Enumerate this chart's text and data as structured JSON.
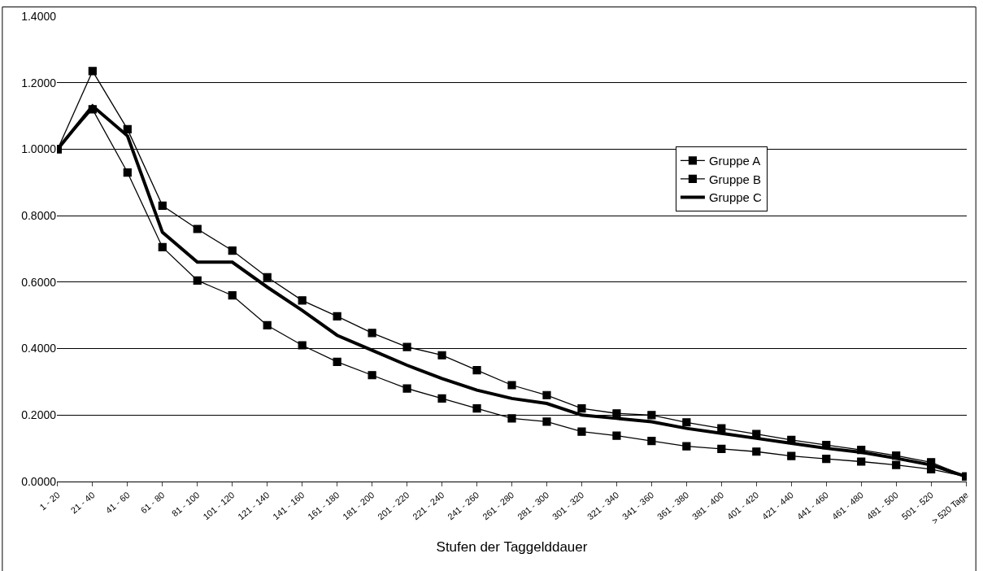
{
  "chart_data": {
    "type": "line",
    "xlabel": "Stufen der Taggelddauer",
    "categories": [
      "1 - 20",
      "21 - 40",
      "41 - 60",
      "61 - 80",
      "81 - 100",
      "101 - 120",
      "121 - 140",
      "141 - 160",
      "161 - 180",
      "181 - 200",
      "201 - 220",
      "221 - 240",
      "241 - 260",
      "261 - 280",
      "281 - 300",
      "301 - 320",
      "321 - 340",
      "341 - 360",
      "361 - 380",
      "381 - 400",
      "401 - 420",
      "421 - 440",
      "441 - 460",
      "461 - 480",
      "481 - 500",
      "501 - 520",
      "> 520 Tage"
    ],
    "series": [
      {
        "name": "Gruppe A",
        "color": "#000000",
        "marker": "square",
        "values": [
          1.0,
          1.235,
          1.06,
          0.83,
          0.76,
          0.695,
          0.615,
          0.545,
          0.497,
          0.447,
          0.405,
          0.38,
          0.335,
          0.29,
          0.26,
          0.22,
          0.205,
          0.2,
          0.178,
          0.16,
          0.143,
          0.125,
          0.11,
          0.095,
          0.078,
          0.058,
          0.015
        ]
      },
      {
        "name": "Gruppe B",
        "color": "#000000",
        "marker": "square",
        "values": [
          1.0,
          1.12,
          0.93,
          0.705,
          0.605,
          0.56,
          0.47,
          0.41,
          0.36,
          0.32,
          0.28,
          0.25,
          0.22,
          0.19,
          0.18,
          0.15,
          0.138,
          0.122,
          0.106,
          0.098,
          0.09,
          0.077,
          0.068,
          0.06,
          0.05,
          0.037,
          0.015
        ]
      },
      {
        "name": "Gruppe C",
        "color": "#000000",
        "marker": "none",
        "values": [
          1.0,
          1.13,
          1.04,
          0.75,
          0.66,
          0.66,
          0.585,
          0.515,
          0.44,
          0.395,
          0.35,
          0.31,
          0.275,
          0.25,
          0.235,
          0.2,
          0.19,
          0.18,
          0.16,
          0.145,
          0.13,
          0.115,
          0.1,
          0.088,
          0.07,
          0.05,
          0.015
        ]
      }
    ],
    "ylim": [
      0,
      1.4
    ],
    "yticks": [
      {
        "value": 0,
        "label": "0.0000"
      },
      {
        "value": 0.2,
        "label": "0.2000"
      },
      {
        "value": 0.4,
        "label": "0.4000"
      },
      {
        "value": 0.6,
        "label": "0.6000"
      },
      {
        "value": 0.8,
        "label": "0.8000"
      },
      {
        "value": 1.0,
        "label": "1.0000"
      },
      {
        "value": 1.2,
        "label": "1.2000"
      },
      {
        "value": 1.4,
        "label": "1.4000"
      }
    ],
    "grid": "y",
    "legend": "right",
    "line_style": "solid"
  }
}
